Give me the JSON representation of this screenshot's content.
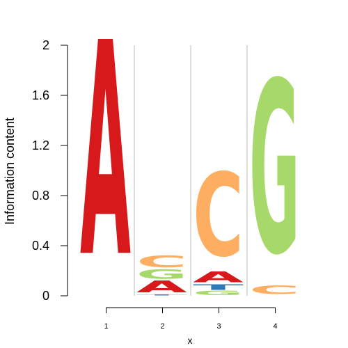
{
  "chart_data": {
    "type": "sequence-logo",
    "title": "",
    "xlabel": "x",
    "ylabel": "Information content",
    "ylim": [
      0,
      2
    ],
    "y_ticks": [
      "0",
      "0.4",
      "0.8",
      "1.2",
      "1.6",
      "2"
    ],
    "y_tick_values": [
      0,
      0.4,
      0.8,
      1.2,
      1.6,
      2
    ],
    "x_ticks": [
      "1",
      "2",
      "3",
      "4"
    ],
    "grid": "vertical separators between positions",
    "colors": {
      "A": "#d7191c",
      "C": "#fdae61",
      "G": "#a6d96a",
      "T": "#2c7bb6"
    },
    "positions": [
      {
        "position": "1",
        "letters": [
          {
            "letter": "A",
            "height": 2.0
          }
        ]
      },
      {
        "position": "2",
        "letters": [
          {
            "letter": "T",
            "height": 0.01
          },
          {
            "letter": "A",
            "height": 0.11
          },
          {
            "letter": "G",
            "height": 0.09
          },
          {
            "letter": "C",
            "height": 0.11
          }
        ]
      },
      {
        "position": "3",
        "letters": [
          {
            "letter": "G",
            "height": 0.04
          },
          {
            "letter": "T",
            "height": 0.05
          },
          {
            "letter": "A",
            "height": 0.1
          },
          {
            "letter": "C",
            "height": 0.78
          }
        ]
      },
      {
        "position": "4",
        "letters": [
          {
            "letter": "C",
            "height": 0.08
          },
          {
            "letter": "G",
            "height": 1.61
          }
        ]
      }
    ]
  }
}
